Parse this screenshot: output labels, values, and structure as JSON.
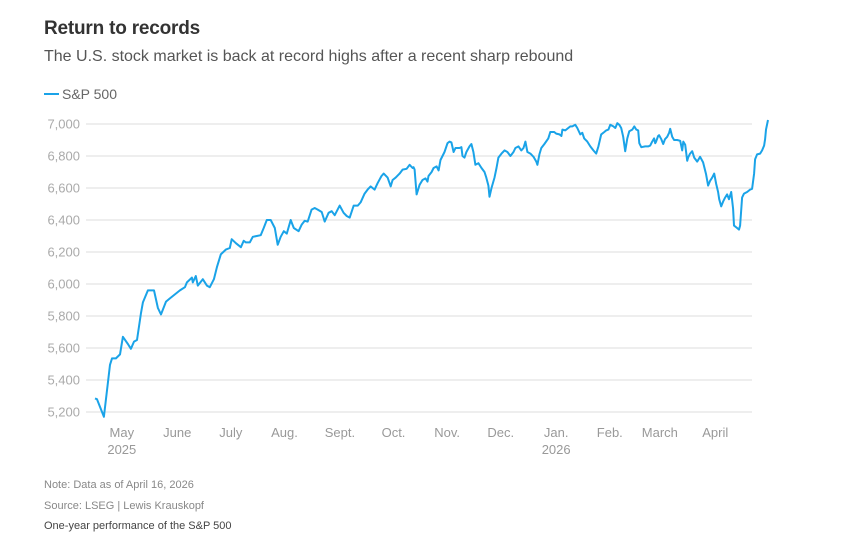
{
  "header": {
    "title": "Return to records",
    "subtitle": "The U.S. stock market is back at record highs after a recent sharp rebound"
  },
  "footer": {
    "note": "Note: Data as of April 16, 2026",
    "source": "Source: LSEG | Lewis Krauskopf",
    "caption": "One-year performance of the S&P 500"
  },
  "colors": {
    "line": "#1aa3e8",
    "grid": "#dddddd",
    "axis_text": "#aaaaaa"
  },
  "chart_data": {
    "type": "line",
    "title": "Return to records",
    "subtitle": "The U.S. stock market is back at record highs after a recent sharp rebound",
    "xlabel": "",
    "ylabel": "",
    "ylim": [
      5200,
      7000
    ],
    "xlim": [
      0,
      366
    ],
    "grid": true,
    "legend": {
      "position": "top-left",
      "entries": [
        "S&P 500"
      ]
    },
    "yticks": [
      {
        "value": 7000,
        "label": "7,000"
      },
      {
        "value": 6800,
        "label": "6,800"
      },
      {
        "value": 6600,
        "label": "6,600"
      },
      {
        "value": 6400,
        "label": "6,400"
      },
      {
        "value": 6200,
        "label": "6,200"
      },
      {
        "value": 6000,
        "label": "6,000"
      },
      {
        "value": 5800,
        "label": "5,800"
      },
      {
        "value": 5600,
        "label": "5,600"
      },
      {
        "value": 5400,
        "label": "5,400"
      },
      {
        "value": 5200,
        "label": "5,200"
      }
    ],
    "xticks": [
      {
        "day": 15,
        "label": "May",
        "sublabel": "2025"
      },
      {
        "day": 46,
        "label": "June",
        "sublabel": ""
      },
      {
        "day": 76,
        "label": "July",
        "sublabel": ""
      },
      {
        "day": 106,
        "label": "Aug.",
        "sublabel": ""
      },
      {
        "day": 137,
        "label": "Sept.",
        "sublabel": ""
      },
      {
        "day": 167,
        "label": "Oct.",
        "sublabel": ""
      },
      {
        "day": 197,
        "label": "Nov.",
        "sublabel": ""
      },
      {
        "day": 227,
        "label": "Dec.",
        "sublabel": ""
      },
      {
        "day": 258,
        "label": "Jan.",
        "sublabel": "2026"
      },
      {
        "day": 288,
        "label": "Feb.",
        "sublabel": ""
      },
      {
        "day": 316,
        "label": "March",
        "sublabel": ""
      },
      {
        "day": 347,
        "label": "April",
        "sublabel": ""
      }
    ],
    "series": [
      {
        "name": "S&P 500",
        "points": [
          [
            0,
            5285
          ],
          [
            1.1,
            5280
          ],
          [
            5,
            5170
          ],
          [
            8.4,
            5495
          ],
          [
            9.5,
            5535
          ],
          [
            11.7,
            5535
          ],
          [
            14,
            5560
          ],
          [
            15.6,
            5670
          ],
          [
            18.4,
            5625
          ],
          [
            20.1,
            5595
          ],
          [
            21.8,
            5640
          ],
          [
            23.5,
            5650
          ],
          [
            25.7,
            5815
          ],
          [
            26.8,
            5885
          ],
          [
            29.6,
            5960
          ],
          [
            33,
            5960
          ],
          [
            35.2,
            5850
          ],
          [
            36.9,
            5810
          ],
          [
            39.7,
            5890
          ],
          [
            41.9,
            5910
          ],
          [
            47.5,
            5960
          ],
          [
            50.3,
            5980
          ],
          [
            51.4,
            6010
          ],
          [
            54.2,
            6040
          ],
          [
            54.7,
            6010
          ],
          [
            56.4,
            6050
          ],
          [
            57.5,
            5990
          ],
          [
            60.3,
            6030
          ],
          [
            62.6,
            5990
          ],
          [
            64.2,
            5980
          ],
          [
            66.5,
            6030
          ],
          [
            68.2,
            6105
          ],
          [
            70.4,
            6185
          ],
          [
            73.2,
            6215
          ],
          [
            75.4,
            6225
          ],
          [
            76.5,
            6280
          ],
          [
            78.8,
            6255
          ],
          [
            81.6,
            6230
          ],
          [
            83.2,
            6270
          ],
          [
            84.4,
            6260
          ],
          [
            86.6,
            6260
          ],
          [
            88.3,
            6295
          ],
          [
            90.5,
            6300
          ],
          [
            92.7,
            6305
          ],
          [
            94.4,
            6350
          ],
          [
            96.1,
            6400
          ],
          [
            98.3,
            6400
          ],
          [
            100.6,
            6350
          ],
          [
            102.2,
            6245
          ],
          [
            103.9,
            6295
          ],
          [
            105.6,
            6330
          ],
          [
            107.3,
            6315
          ],
          [
            109.5,
            6400
          ],
          [
            111.2,
            6350
          ],
          [
            113.9,
            6330
          ],
          [
            115.6,
            6370
          ],
          [
            117.3,
            6395
          ],
          [
            119,
            6390
          ],
          [
            121.2,
            6465
          ],
          [
            122.9,
            6475
          ],
          [
            124.6,
            6465
          ],
          [
            126.8,
            6450
          ],
          [
            128.5,
            6390
          ],
          [
            130.7,
            6445
          ],
          [
            132.4,
            6455
          ],
          [
            134.1,
            6430
          ],
          [
            136.9,
            6490
          ],
          [
            139.1,
            6445
          ],
          [
            140.8,
            6425
          ],
          [
            142.5,
            6415
          ],
          [
            144.7,
            6490
          ],
          [
            147,
            6490
          ],
          [
            148.6,
            6510
          ],
          [
            150.8,
            6565
          ],
          [
            152.5,
            6590
          ],
          [
            154.2,
            6610
          ],
          [
            156.4,
            6590
          ],
          [
            158.1,
            6630
          ],
          [
            160.3,
            6675
          ],
          [
            161.5,
            6690
          ],
          [
            163.7,
            6665
          ],
          [
            165.4,
            6610
          ],
          [
            166.5,
            6650
          ],
          [
            168.2,
            6665
          ],
          [
            170.4,
            6690
          ],
          [
            172.1,
            6715
          ],
          [
            174.3,
            6720
          ],
          [
            176,
            6745
          ],
          [
            177.7,
            6725
          ],
          [
            178.2,
            6730
          ],
          [
            178.8,
            6715
          ],
          [
            179.9,
            6560
          ],
          [
            181.6,
            6620
          ],
          [
            183.2,
            6650
          ],
          [
            184.9,
            6660
          ],
          [
            186,
            6640
          ],
          [
            186.6,
            6675
          ],
          [
            188.3,
            6700
          ],
          [
            189.4,
            6725
          ],
          [
            191.1,
            6735
          ],
          [
            192.2,
            6710
          ],
          [
            193.3,
            6775
          ],
          [
            195.5,
            6825
          ],
          [
            197.2,
            6880
          ],
          [
            198.3,
            6890
          ],
          [
            199.4,
            6885
          ],
          [
            200.6,
            6825
          ],
          [
            201.7,
            6850
          ],
          [
            203.9,
            6850
          ],
          [
            205,
            6855
          ],
          [
            205.6,
            6800
          ],
          [
            206.7,
            6790
          ],
          [
            207.8,
            6825
          ],
          [
            209.5,
            6860
          ],
          [
            210.6,
            6875
          ],
          [
            211.7,
            6825
          ],
          [
            212.8,
            6745
          ],
          [
            214.5,
            6755
          ],
          [
            216.2,
            6725
          ],
          [
            217.9,
            6700
          ],
          [
            218.9,
            6665
          ],
          [
            220.1,
            6615
          ],
          [
            220.7,
            6545
          ],
          [
            221.8,
            6600
          ],
          [
            223.5,
            6665
          ],
          [
            224.6,
            6725
          ],
          [
            225.7,
            6790
          ],
          [
            227.4,
            6815
          ],
          [
            229.1,
            6835
          ],
          [
            230.7,
            6825
          ],
          [
            232.4,
            6800
          ],
          [
            234.1,
            6825
          ],
          [
            235.2,
            6850
          ],
          [
            236.9,
            6860
          ],
          [
            238.5,
            6835
          ],
          [
            239.7,
            6850
          ],
          [
            240.8,
            6890
          ],
          [
            241.9,
            6825
          ],
          [
            243.6,
            6815
          ],
          [
            245.3,
            6795
          ],
          [
            246.9,
            6765
          ],
          [
            247.5,
            6745
          ],
          [
            248.6,
            6810
          ],
          [
            249.7,
            6850
          ],
          [
            251.4,
            6875
          ],
          [
            253.6,
            6910
          ],
          [
            254.7,
            6950
          ],
          [
            256.9,
            6950
          ],
          [
            258,
            6940
          ],
          [
            259.8,
            6935
          ],
          [
            260.9,
            6925
          ],
          [
            261.5,
            6965
          ],
          [
            263.1,
            6960
          ],
          [
            265.9,
            6985
          ],
          [
            267,
            6985
          ],
          [
            268.7,
            6995
          ],
          [
            269.8,
            6975
          ],
          [
            271.5,
            6935
          ],
          [
            272.6,
            6945
          ],
          [
            273.7,
            6910
          ],
          [
            275.4,
            6890
          ],
          [
            277.1,
            6860
          ],
          [
            278.8,
            6835
          ],
          [
            280.4,
            6815
          ],
          [
            281.6,
            6860
          ],
          [
            283.2,
            6935
          ],
          [
            284.9,
            6950
          ],
          [
            286,
            6960
          ],
          [
            287.2,
            6965
          ],
          [
            288.3,
            6995
          ],
          [
            290,
            6985
          ],
          [
            291.1,
            6975
          ],
          [
            292.2,
            7005
          ],
          [
            293.3,
            6995
          ],
          [
            294.4,
            6975
          ],
          [
            295.5,
            6920
          ],
          [
            296.6,
            6830
          ],
          [
            297.8,
            6910
          ],
          [
            298.9,
            6955
          ],
          [
            300.6,
            6965
          ],
          [
            301.7,
            6985
          ],
          [
            302.8,
            6965
          ],
          [
            303.9,
            6960
          ],
          [
            304.5,
            6880
          ],
          [
            305.6,
            6855
          ],
          [
            307.8,
            6860
          ],
          [
            309.5,
            6860
          ],
          [
            310.6,
            6865
          ],
          [
            311.7,
            6890
          ],
          [
            312.8,
            6910
          ],
          [
            313.4,
            6880
          ],
          [
            313.9,
            6890
          ],
          [
            315,
            6925
          ],
          [
            315.6,
            6930
          ],
          [
            316.8,
            6905
          ],
          [
            317.9,
            6875
          ],
          [
            318.9,
            6905
          ],
          [
            320.1,
            6920
          ],
          [
            321.2,
            6945
          ],
          [
            321.8,
            6970
          ],
          [
            322.9,
            6920
          ],
          [
            324,
            6900
          ],
          [
            325.7,
            6900
          ],
          [
            327.4,
            6895
          ],
          [
            328.5,
            6835
          ],
          [
            329.1,
            6890
          ],
          [
            330.2,
            6870
          ],
          [
            331.3,
            6770
          ],
          [
            331.8,
            6790
          ],
          [
            332.9,
            6815
          ],
          [
            334.1,
            6830
          ],
          [
            335.2,
            6790
          ],
          [
            336.9,
            6765
          ],
          [
            338.5,
            6795
          ],
          [
            340.2,
            6760
          ],
          [
            341.9,
            6685
          ],
          [
            343,
            6615
          ],
          [
            344.1,
            6645
          ],
          [
            345.3,
            6665
          ],
          [
            346.4,
            6690
          ],
          [
            347.5,
            6625
          ],
          [
            348.6,
            6575
          ],
          [
            349.2,
            6530
          ],
          [
            350.3,
            6485
          ],
          [
            351.4,
            6515
          ],
          [
            352.5,
            6540
          ],
          [
            353.6,
            6560
          ],
          [
            354.7,
            6530
          ],
          [
            355.9,
            6575
          ],
          [
            357,
            6470
          ],
          [
            357.5,
            6365
          ],
          [
            359.2,
            6350
          ],
          [
            360.3,
            6340
          ],
          [
            360.9,
            6365
          ],
          [
            362,
            6540
          ],
          [
            363.1,
            6565
          ],
          [
            364.8,
            6575
          ],
          [
            366.5,
            6590
          ],
          [
            367.6,
            6595
          ],
          [
            368.7,
            6690
          ],
          [
            369.3,
            6780
          ],
          [
            370.4,
            6810
          ],
          [
            372.1,
            6815
          ],
          [
            373.2,
            6835
          ],
          [
            374.3,
            6865
          ],
          [
            374.9,
            6905
          ],
          [
            375.4,
            6965
          ],
          [
            376.5,
            7025
          ]
        ]
      }
    ]
  }
}
